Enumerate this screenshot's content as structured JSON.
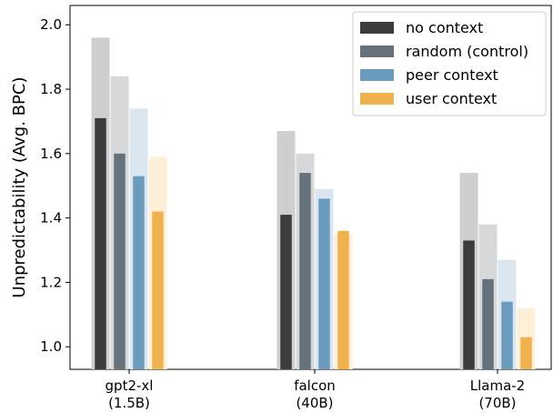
{
  "chart_data": {
    "type": "bar",
    "ylabel": "Unpredictability (Avg. BPC)",
    "ylim": [
      0.93,
      2.06
    ],
    "yticks": [
      "1.0",
      "1.2",
      "1.4",
      "1.6",
      "1.8",
      "2.0"
    ],
    "ytick_values": [
      1.0,
      1.2,
      1.4,
      1.6,
      1.8,
      2.0
    ],
    "categories": [
      {
        "line1": "gpt2-xl",
        "line2": "(1.5B)"
      },
      {
        "line1": "falcon",
        "line2": "(40B)"
      },
      {
        "line1": "Llama-2",
        "line2": "(70B)"
      }
    ],
    "series": [
      {
        "name": "no context",
        "color": "#3c3c3c",
        "light_color": "#cfcfcf",
        "values": [
          1.71,
          1.41,
          1.33
        ],
        "light_values": [
          1.96,
          1.67,
          1.54
        ]
      },
      {
        "name": "random (control)",
        "color": "#65727c",
        "light_color": "#d6d8da",
        "values": [
          1.6,
          1.54,
          1.21
        ],
        "light_values": [
          1.84,
          1.6,
          1.38
        ]
      },
      {
        "name": "peer context",
        "color": "#6c9cbd",
        "light_color": "#dbe7f0",
        "values": [
          1.53,
          1.46,
          1.14
        ],
        "light_values": [
          1.74,
          1.49,
          1.27
        ]
      },
      {
        "name": "user context",
        "color": "#f0b24e",
        "light_color": "#fdefd8",
        "values": [
          1.42,
          1.36,
          1.03
        ],
        "light_values": [
          1.59,
          1.35,
          1.12
        ]
      }
    ],
    "legend_position": "top-right",
    "grid": false
  }
}
